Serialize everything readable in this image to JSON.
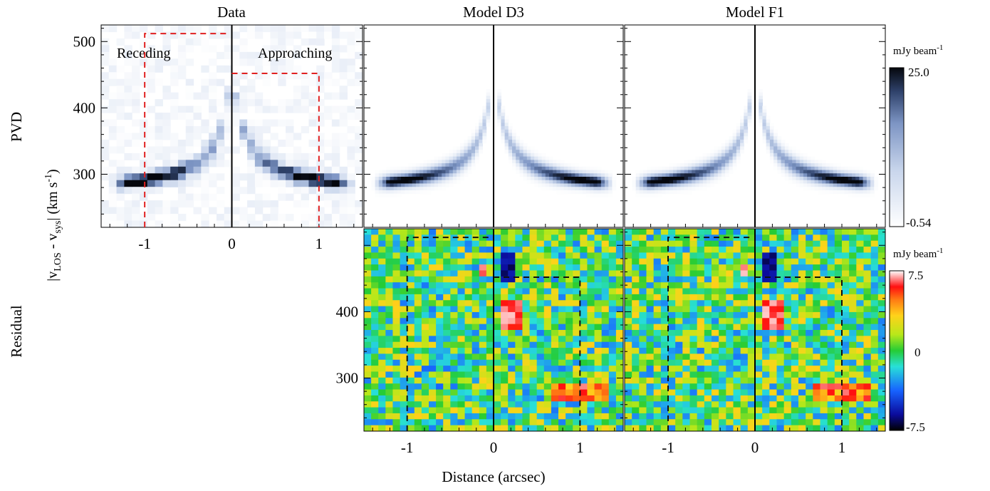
{
  "labels": {
    "col_data": "Data",
    "col_model_d3": "Model D3",
    "col_model_f1": "Model F1",
    "row_pvd": "PVD",
    "row_residual": "Residual",
    "xlabel": "Distance (arcsec)",
    "ylabel_main": "|v",
    "ylabel_sub1": "LOS",
    "ylabel_mid": " - v",
    "ylabel_sub2": "sys",
    "ylabel_unit": "| (km s",
    "ylabel_exp": "-1",
    "ylabel_end": ")",
    "receding": "Receding",
    "approaching": "Approaching"
  },
  "chart_data": {
    "type": "heatmap",
    "panels": [
      "Data",
      "Model D3",
      "Model F1",
      "Residual D3",
      "Residual F1"
    ],
    "x_ticks": [
      "-1",
      "0",
      "1"
    ],
    "y_ticks_pvd": [
      "500",
      "400",
      "300"
    ],
    "y_ticks_residual": [
      "400",
      "300"
    ],
    "xlim": [
      -1.5,
      1.5
    ],
    "ylim": [
      220,
      525
    ],
    "colorbar_pvd": {
      "unit": "mJy beam",
      "unit_exp": "-1",
      "max": "25.0",
      "min": "-0.54",
      "colormap": "white-blue-black"
    },
    "colorbar_residual": {
      "unit": "mJy beam",
      "unit_exp": "-1",
      "max": "7.5",
      "mid": "0",
      "min": "-7.5",
      "colormap": "rainbow"
    },
    "receding_box": {
      "x": [
        -1.0,
        -0.05
      ],
      "y_top": 512
    },
    "approaching_box": {
      "x": [
        0.0,
        1.0
      ],
      "y_top": 452
    },
    "curve_points": [
      {
        "distance": 0.15,
        "velocity": 420
      },
      {
        "distance": 0.3,
        "velocity": 350
      },
      {
        "distance": 0.5,
        "velocity": 310
      },
      {
        "distance": 0.8,
        "velocity": 283
      }
    ]
  }
}
